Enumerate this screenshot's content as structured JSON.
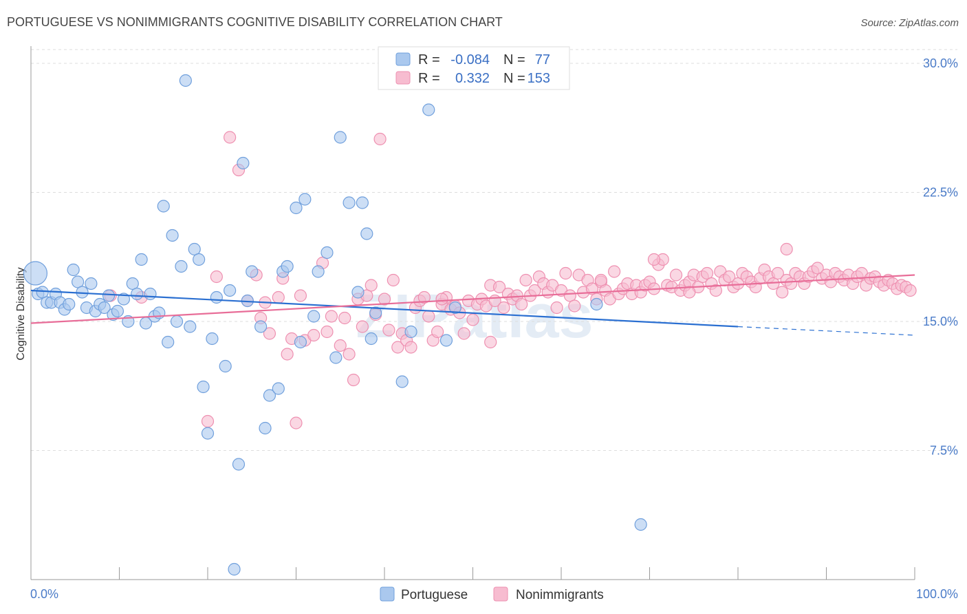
{
  "title": "PORTUGUESE VS NONIMMIGRANTS COGNITIVE DISABILITY CORRELATION CHART",
  "source": "Source: ZipAtlas.com",
  "watermark": "ZIPatlas",
  "colors": {
    "portuguese_fill": "#aac8ee",
    "portuguese_stroke": "#6f9fdc",
    "portuguese_line": "#2a6fd1",
    "nonimmigrants_fill": "#f7bcd0",
    "nonimmigrants_stroke": "#ee8fb0",
    "nonimmigrants_line": "#e86d98",
    "tick_text": "#4a7bc8",
    "grid": "#dddddd"
  },
  "legend": {
    "rows": [
      {
        "series": "Portuguese",
        "r_label": "R =",
        "r_value": "-0.084",
        "n_label": "N =",
        "n_value": "77"
      },
      {
        "series": "Nonimmigrants",
        "r_label": "R =",
        "r_value": "0.332",
        "n_label": "N =",
        "n_value": "153"
      }
    ]
  },
  "chart_data": {
    "type": "scatter",
    "xlabel": "",
    "ylabel": "Cognitive Disability",
    "xlim": [
      0,
      100
    ],
    "ylim": [
      0,
      31
    ],
    "x_tick_labels": [
      "0.0%",
      "100.0%"
    ],
    "y_ticks": [
      7.5,
      15.0,
      22.5,
      30.0
    ],
    "y_tick_labels": [
      "7.5%",
      "15.0%",
      "22.5%",
      "30.0%"
    ],
    "grid": "horizontal dashed",
    "legend_position": "top-center",
    "series": [
      {
        "name": "Portuguese",
        "trend": {
          "x0": 0,
          "y0": 16.8,
          "x1": 80,
          "y1": 14.7,
          "dashed_to_x": 100,
          "dashed_to_y": 14.2
        },
        "points": [
          [
            0.5,
            17.8
          ],
          [
            0.8,
            16.6
          ],
          [
            1.3,
            16.7
          ],
          [
            1.8,
            16.1
          ],
          [
            2.3,
            16.1
          ],
          [
            2.8,
            16.6
          ],
          [
            3.3,
            16.1
          ],
          [
            3.8,
            15.7
          ],
          [
            4.3,
            16.0
          ],
          [
            4.8,
            18.0
          ],
          [
            5.3,
            17.3
          ],
          [
            5.8,
            16.7
          ],
          [
            6.3,
            15.8
          ],
          [
            6.8,
            17.2
          ],
          [
            7.3,
            15.6
          ],
          [
            7.8,
            16.0
          ],
          [
            8.3,
            15.8
          ],
          [
            8.8,
            16.5
          ],
          [
            9.3,
            15.4
          ],
          [
            9.8,
            15.6
          ],
          [
            10.5,
            16.3
          ],
          [
            11.0,
            15.0
          ],
          [
            11.5,
            17.2
          ],
          [
            12.0,
            16.6
          ],
          [
            12.5,
            18.6
          ],
          [
            13.0,
            14.9
          ],
          [
            13.5,
            16.6
          ],
          [
            14.0,
            15.3
          ],
          [
            14.5,
            15.5
          ],
          [
            15.0,
            21.7
          ],
          [
            15.5,
            13.8
          ],
          [
            16.0,
            20.0
          ],
          [
            16.5,
            15.0
          ],
          [
            17.0,
            18.2
          ],
          [
            17.5,
            29.0
          ],
          [
            18.0,
            14.7
          ],
          [
            18.5,
            19.2
          ],
          [
            19.0,
            18.6
          ],
          [
            19.5,
            11.2
          ],
          [
            20.0,
            8.5
          ],
          [
            20.5,
            14.0
          ],
          [
            21.0,
            16.4
          ],
          [
            22.0,
            12.4
          ],
          [
            22.5,
            16.8
          ],
          [
            23.0,
            0.6
          ],
          [
            23.5,
            6.7
          ],
          [
            24.0,
            24.2
          ],
          [
            24.5,
            16.2
          ],
          [
            25.0,
            17.9
          ],
          [
            26.0,
            14.7
          ],
          [
            26.5,
            8.8
          ],
          [
            27.0,
            10.7
          ],
          [
            28.0,
            11.1
          ],
          [
            28.5,
            17.9
          ],
          [
            29.0,
            18.2
          ],
          [
            30.0,
            21.6
          ],
          [
            30.5,
            13.8
          ],
          [
            31.0,
            22.1
          ],
          [
            32.0,
            15.3
          ],
          [
            32.5,
            17.9
          ],
          [
            33.5,
            19.0
          ],
          [
            34.5,
            12.9
          ],
          [
            35.0,
            25.7
          ],
          [
            36.0,
            21.9
          ],
          [
            37.0,
            16.7
          ],
          [
            37.5,
            21.9
          ],
          [
            38.0,
            20.1
          ],
          [
            38.5,
            14.0
          ],
          [
            39.0,
            15.5
          ],
          [
            42.0,
            11.5
          ],
          [
            43.0,
            14.4
          ],
          [
            45.0,
            27.3
          ],
          [
            47.0,
            13.9
          ],
          [
            48.0,
            15.8
          ],
          [
            64.0,
            16.0
          ],
          [
            69.0,
            3.2
          ]
        ]
      },
      {
        "name": "Nonimmigrants",
        "trend": {
          "x0": 0,
          "y0": 14.9,
          "x1": 100,
          "y1": 17.7
        },
        "points": [
          [
            9.0,
            16.5
          ],
          [
            12.5,
            16.4
          ],
          [
            20.0,
            9.2
          ],
          [
            21.0,
            17.6
          ],
          [
            22.5,
            25.7
          ],
          [
            23.5,
            23.8
          ],
          [
            24.5,
            16.2
          ],
          [
            25.5,
            17.7
          ],
          [
            26.0,
            15.2
          ],
          [
            26.5,
            16.1
          ],
          [
            27.0,
            14.3
          ],
          [
            28.0,
            16.4
          ],
          [
            28.5,
            17.5
          ],
          [
            29.0,
            13.1
          ],
          [
            29.5,
            14.0
          ],
          [
            30.0,
            9.1
          ],
          [
            30.5,
            16.5
          ],
          [
            31.0,
            13.9
          ],
          [
            32.0,
            14.2
          ],
          [
            33.0,
            18.4
          ],
          [
            33.5,
            14.4
          ],
          [
            34.0,
            15.3
          ],
          [
            35.0,
            13.6
          ],
          [
            35.5,
            15.2
          ],
          [
            36.0,
            13.1
          ],
          [
            36.5,
            11.6
          ],
          [
            37.0,
            16.3
          ],
          [
            37.5,
            14.7
          ],
          [
            38.0,
            16.5
          ],
          [
            38.5,
            17.1
          ],
          [
            39.0,
            15.4
          ],
          [
            39.5,
            25.6
          ],
          [
            40.0,
            16.3
          ],
          [
            40.5,
            14.5
          ],
          [
            41.0,
            17.4
          ],
          [
            41.5,
            13.5
          ],
          [
            42.0,
            14.3
          ],
          [
            42.5,
            13.9
          ],
          [
            43.0,
            13.5
          ],
          [
            43.5,
            15.8
          ],
          [
            44.0,
            16.2
          ],
          [
            44.5,
            16.4
          ],
          [
            45.0,
            15.3
          ],
          [
            45.5,
            13.9
          ],
          [
            46.0,
            14.4
          ],
          [
            46.5,
            16.0
          ],
          [
            47.0,
            16.4
          ],
          [
            47.5,
            15.7
          ],
          [
            48.0,
            15.9
          ],
          [
            48.5,
            15.5
          ],
          [
            49.0,
            14.3
          ],
          [
            49.5,
            16.2
          ],
          [
            50.0,
            15.1
          ],
          [
            50.5,
            16.0
          ],
          [
            51.0,
            16.3
          ],
          [
            51.5,
            15.9
          ],
          [
            52.0,
            17.1
          ],
          [
            52.5,
            16.2
          ],
          [
            53.0,
            17.0
          ],
          [
            53.5,
            15.8
          ],
          [
            54.0,
            16.6
          ],
          [
            54.5,
            16.3
          ],
          [
            55.0,
            16.5
          ],
          [
            55.5,
            16.0
          ],
          [
            56.0,
            17.4
          ],
          [
            56.5,
            16.5
          ],
          [
            57.0,
            16.8
          ],
          [
            57.5,
            17.6
          ],
          [
            58.0,
            17.2
          ],
          [
            58.5,
            16.7
          ],
          [
            59.0,
            17.1
          ],
          [
            59.5,
            15.8
          ],
          [
            60.0,
            16.8
          ],
          [
            60.5,
            17.8
          ],
          [
            61.0,
            16.5
          ],
          [
            61.5,
            15.9
          ],
          [
            62.0,
            17.7
          ],
          [
            62.5,
            16.7
          ],
          [
            63.0,
            17.4
          ],
          [
            63.5,
            16.9
          ],
          [
            64.0,
            16.3
          ],
          [
            64.5,
            17.3
          ],
          [
            65.0,
            16.8
          ],
          [
            65.5,
            16.3
          ],
          [
            66.0,
            17.9
          ],
          [
            66.5,
            16.6
          ],
          [
            67.0,
            16.9
          ],
          [
            67.5,
            17.2
          ],
          [
            68.0,
            16.6
          ],
          [
            68.5,
            17.1
          ],
          [
            69.0,
            16.7
          ],
          [
            69.5,
            17.1
          ],
          [
            70.0,
            17.3
          ],
          [
            70.5,
            16.9
          ],
          [
            71.0,
            18.3
          ],
          [
            71.5,
            18.6
          ],
          [
            72.0,
            17.1
          ],
          [
            72.5,
            17.0
          ],
          [
            73.0,
            17.7
          ],
          [
            73.5,
            16.8
          ],
          [
            74.0,
            17.1
          ],
          [
            74.5,
            17.3
          ],
          [
            75.0,
            17.7
          ],
          [
            75.5,
            17.0
          ],
          [
            76.0,
            17.6
          ],
          [
            76.5,
            17.8
          ],
          [
            77.0,
            17.2
          ],
          [
            77.5,
            16.8
          ],
          [
            78.0,
            17.9
          ],
          [
            78.5,
            17.4
          ],
          [
            79.0,
            17.6
          ],
          [
            79.5,
            17.0
          ],
          [
            80.0,
            17.2
          ],
          [
            80.5,
            17.8
          ],
          [
            81.0,
            17.6
          ],
          [
            81.5,
            17.3
          ],
          [
            82.0,
            17.0
          ],
          [
            82.5,
            17.5
          ],
          [
            83.0,
            18.0
          ],
          [
            83.5,
            17.6
          ],
          [
            84.0,
            17.2
          ],
          [
            84.5,
            17.8
          ],
          [
            85.0,
            16.7
          ],
          [
            85.5,
            17.4
          ],
          [
            86.0,
            17.2
          ],
          [
            86.5,
            17.8
          ],
          [
            87.0,
            17.6
          ],
          [
            87.5,
            17.2
          ],
          [
            88.0,
            17.6
          ],
          [
            88.5,
            17.9
          ],
          [
            89.0,
            18.1
          ],
          [
            89.5,
            17.5
          ],
          [
            90.0,
            17.7
          ],
          [
            90.5,
            17.3
          ],
          [
            91.0,
            17.8
          ],
          [
            91.5,
            17.6
          ],
          [
            92.0,
            17.4
          ],
          [
            92.5,
            17.7
          ],
          [
            93.0,
            17.2
          ],
          [
            93.5,
            17.6
          ],
          [
            94.0,
            17.8
          ],
          [
            94.5,
            17.1
          ],
          [
            95.0,
            17.5
          ],
          [
            95.5,
            17.6
          ],
          [
            96.0,
            17.3
          ],
          [
            96.5,
            17.1
          ],
          [
            97.0,
            17.4
          ],
          [
            97.5,
            17.2
          ],
          [
            98.0,
            16.9
          ],
          [
            98.5,
            17.1
          ],
          [
            99.0,
            17.0
          ],
          [
            99.5,
            16.8
          ],
          [
            70.5,
            18.6
          ],
          [
            85.5,
            19.2
          ],
          [
            52.0,
            13.8
          ],
          [
            46.5,
            16.3
          ],
          [
            74.5,
            16.7
          ],
          [
            64.5,
            17.4
          ]
        ]
      }
    ]
  },
  "bottom_legend": [
    {
      "label": "Portuguese"
    },
    {
      "label": "Nonimmigrants"
    }
  ]
}
